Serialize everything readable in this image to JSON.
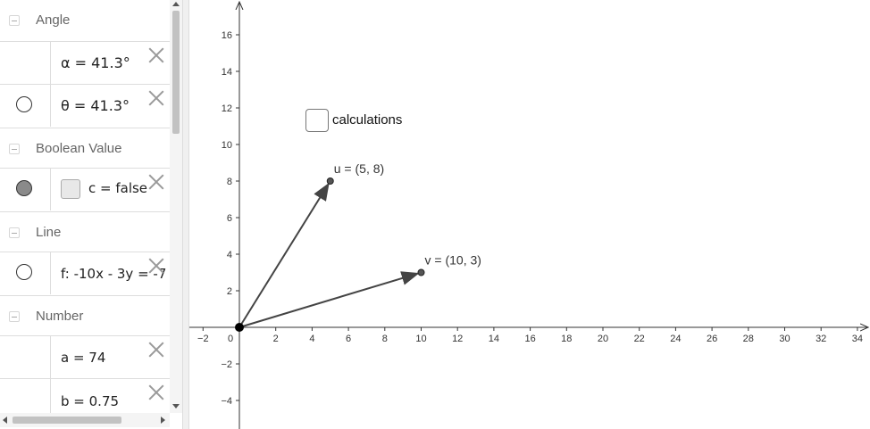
{
  "algebra": {
    "groups": [
      {
        "title": "Angle",
        "items": [
          {
            "expr": "α = 41.3°",
            "visible": false,
            "shown_toggle": false
          },
          {
            "expr": "θ = 41.3°",
            "visible": false,
            "shown_toggle": true
          }
        ]
      },
      {
        "title": "Boolean Value",
        "items": [
          {
            "expr": "c = false",
            "visible": true,
            "shown_toggle": true,
            "checkbox": true
          }
        ]
      },
      {
        "title": "Line",
        "items": [
          {
            "expr": "f: -10x - 3y = -7",
            "visible": false,
            "shown_toggle": true
          }
        ]
      },
      {
        "title": "Number",
        "items": [
          {
            "expr": "a = 74",
            "shown_toggle": false
          },
          {
            "expr": "b = 0.75",
            "shown_toggle": false
          }
        ]
      }
    ]
  },
  "graphics": {
    "checkbox_label": "calculations",
    "axes": {
      "x_ticks": [
        -2,
        0,
        2,
        4,
        6,
        8,
        10,
        12,
        14,
        16,
        18,
        20,
        22,
        24,
        26,
        28,
        30,
        32,
        34
      ],
      "y_ticks": [
        -4,
        -2,
        2,
        4,
        6,
        8,
        10,
        12,
        14,
        16
      ],
      "x_range": [
        -2.6,
        34.6
      ],
      "y_range": [
        -5.3,
        17.8
      ]
    },
    "vectors": [
      {
        "name": "u",
        "label": "u = (5, 8)",
        "x": 5,
        "y": 8
      },
      {
        "name": "v",
        "label": "v = (10, 3)",
        "x": 10,
        "y": 3
      }
    ],
    "colors": {
      "vector": "#444444",
      "axis": "#333333"
    }
  }
}
